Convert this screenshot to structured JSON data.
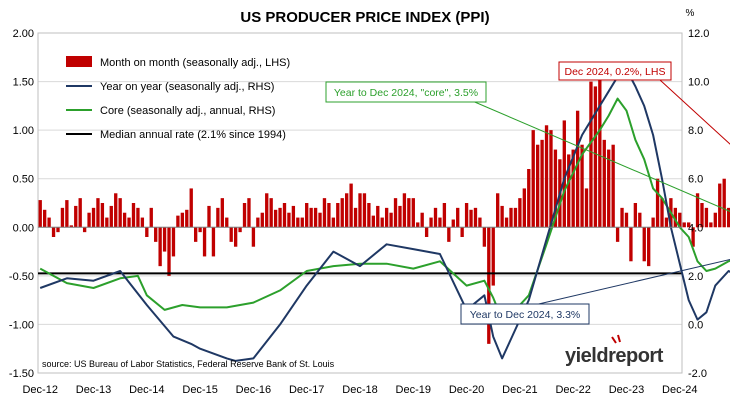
{
  "chart_data": {
    "type": "bar+line",
    "title": "US PRODUCER PRICE INDEX (PPI)",
    "left_unit": "",
    "right_unit": "%",
    "left_axis": {
      "min": -1.5,
      "max": 2.0,
      "ticks": [
        "2.00",
        "1.50",
        "1.00",
        "0.50",
        "0.00",
        "-0.50",
        "-1.00",
        "-1.50"
      ]
    },
    "right_axis": {
      "min": -2.0,
      "max": 12.0,
      "ticks": [
        "12.0",
        "10.0",
        "8.0",
        "6.0",
        "4.0",
        "2.0",
        "0.0",
        "-2.0"
      ]
    },
    "x_labels": [
      "Dec-12",
      "Dec-13",
      "Dec-14",
      "Dec-15",
      "Dec-16",
      "Dec-17",
      "Dec-18",
      "Dec-19",
      "Dec-20",
      "Dec-21",
      "Dec-22",
      "Dec-23",
      "Dec-24"
    ],
    "x_start": "2012-12",
    "grid": true,
    "legend": {
      "placement": "top-left",
      "items": [
        {
          "label": "Month on month (seasonally adj., LHS)",
          "kind": "bar",
          "color": "#c00000"
        },
        {
          "label": "Year on year (seasonally adj., RHS)",
          "kind": "line",
          "color": "#1f3864"
        },
        {
          "label": "Core (seasonally adj., annual, RHS)",
          "kind": "line",
          "color": "#2ca02c"
        },
        {
          "label": "Median annual rate (2.1% since 1994)",
          "kind": "line",
          "color": "#000000"
        }
      ]
    },
    "series": [
      {
        "name": "Month on month (seasonally adj., LHS)",
        "axis": "left",
        "color": "#c00000",
        "values": [
          0.28,
          0.18,
          0.1,
          -0.1,
          -0.05,
          0.2,
          0.28,
          0.02,
          0.22,
          0.3,
          -0.05,
          0.15,
          0.2,
          0.3,
          0.25,
          0.1,
          0.22,
          0.35,
          0.3,
          0.15,
          0.1,
          0.25,
          0.2,
          0.1,
          -0.1,
          0.2,
          -0.15,
          -0.4,
          -0.25,
          -0.5,
          -0.3,
          0.12,
          0.15,
          0.18,
          0.4,
          -0.15,
          -0.05,
          -0.3,
          0.22,
          -0.3,
          0.2,
          0.3,
          0.1,
          -0.15,
          -0.2,
          -0.05,
          0.25,
          0.3,
          -0.2,
          0.1,
          0.15,
          0.35,
          0.3,
          0.18,
          0.2,
          0.25,
          0.15,
          0.22,
          0.1,
          0.1,
          0.25,
          0.2,
          0.2,
          0.15,
          0.3,
          0.25,
          0.1,
          0.25,
          0.3,
          0.35,
          0.45,
          0.2,
          0.35,
          0.35,
          0.25,
          0.12,
          0.22,
          0.1,
          0.2,
          0.15,
          0.3,
          0.22,
          0.35,
          0.3,
          0.3,
          0.05,
          0.15,
          -0.1,
          0.1,
          0.2,
          0.1,
          0.25,
          -0.15,
          0.08,
          0.2,
          -0.1,
          0.25,
          0.18,
          0.2,
          0.1,
          -0.2,
          -1.2,
          -0.6,
          0.35,
          0.22,
          0.1,
          0.2,
          0.2,
          0.3,
          0.4,
          0.6,
          1.0,
          0.85,
          0.9,
          1.05,
          1.0,
          0.8,
          0.7,
          1.1,
          0.75,
          0.8,
          1.2,
          0.85,
          0.4,
          1.5,
          1.45,
          1.65,
          0.9,
          0.8,
          0.85,
          -0.15,
          0.2,
          0.15,
          -0.35,
          0.25,
          0.15,
          -0.35,
          -0.4,
          0.1,
          0.5,
          0.3,
          0.1,
          0.3,
          0.2,
          0.15,
          0.05,
          0.05,
          -0.2,
          0.35,
          0.25,
          0.2,
          0.05,
          0.15,
          0.45,
          0.5,
          0.2,
          0.2,
          0.25,
          0.3,
          0.4,
          0.18,
          0.38,
          0.22,
          0.22,
          0.2
        ]
      },
      {
        "name": "Year on year (seasonally adj., RHS)",
        "axis": "right",
        "color": "#1f3864",
        "points": [
          [
            0,
            1.5
          ],
          [
            6,
            1.9
          ],
          [
            12,
            1.8
          ],
          [
            18,
            2.2
          ],
          [
            24,
            0.8
          ],
          [
            30,
            -0.5
          ],
          [
            34,
            -0.8
          ],
          [
            36,
            -1.0
          ],
          [
            42,
            -1.4
          ],
          [
            44,
            -1.5
          ],
          [
            48,
            -1.4
          ],
          [
            54,
            0.0
          ],
          [
            60,
            1.6
          ],
          [
            66,
            3.0
          ],
          [
            72,
            2.4
          ],
          [
            78,
            3.3
          ],
          [
            84,
            3.1
          ],
          [
            90,
            2.9
          ],
          [
            96,
            0.6
          ],
          [
            100,
            1.2
          ],
          [
            102,
            -0.5
          ],
          [
            104,
            -1.4
          ],
          [
            106,
            -0.6
          ],
          [
            110,
            1.0
          ],
          [
            114,
            3.5
          ],
          [
            118,
            6.0
          ],
          [
            122,
            7.8
          ],
          [
            126,
            9.0
          ],
          [
            128,
            9.6
          ],
          [
            130,
            10.2
          ],
          [
            132,
            10.5
          ],
          [
            134,
            9.8
          ],
          [
            136,
            9.0
          ],
          [
            138,
            7.8
          ],
          [
            140,
            6.0
          ],
          [
            142,
            4.0
          ],
          [
            144,
            2.5
          ],
          [
            146,
            1.0
          ],
          [
            148,
            0.2
          ],
          [
            150,
            0.5
          ],
          [
            152,
            1.6
          ],
          [
            155,
            2.2
          ],
          [
            158,
            1.9
          ],
          [
            162,
            2.4
          ],
          [
            164,
            2.0
          ],
          [
            166,
            2.6
          ],
          [
            168,
            3.0
          ],
          [
            170,
            3.3
          ]
        ]
      },
      {
        "name": "Core (seasonally adj., annual, RHS)",
        "axis": "right",
        "color": "#2ca02c",
        "points": [
          [
            0,
            2.3
          ],
          [
            6,
            1.7
          ],
          [
            12,
            1.5
          ],
          [
            18,
            1.9
          ],
          [
            22,
            2.0
          ],
          [
            24,
            1.2
          ],
          [
            28,
            0.6
          ],
          [
            32,
            0.8
          ],
          [
            36,
            0.7
          ],
          [
            42,
            0.7
          ],
          [
            48,
            0.9
          ],
          [
            54,
            1.4
          ],
          [
            60,
            2.2
          ],
          [
            66,
            2.4
          ],
          [
            72,
            2.5
          ],
          [
            78,
            2.5
          ],
          [
            84,
            2.3
          ],
          [
            90,
            2.6
          ],
          [
            96,
            1.6
          ],
          [
            100,
            1.8
          ],
          [
            102,
            1.1
          ],
          [
            104,
            0.2
          ],
          [
            106,
            0.4
          ],
          [
            110,
            1.2
          ],
          [
            114,
            3.3
          ],
          [
            118,
            5.5
          ],
          [
            122,
            7.0
          ],
          [
            126,
            8.0
          ],
          [
            128,
            8.6
          ],
          [
            130,
            9.3
          ],
          [
            132,
            8.8
          ],
          [
            134,
            7.6
          ],
          [
            136,
            6.8
          ],
          [
            138,
            5.6
          ],
          [
            140,
            5.2
          ],
          [
            142,
            4.6
          ],
          [
            144,
            4.0
          ],
          [
            146,
            3.6
          ],
          [
            148,
            2.6
          ],
          [
            150,
            2.2
          ],
          [
            152,
            2.3
          ],
          [
            155,
            2.6
          ],
          [
            158,
            2.8
          ],
          [
            162,
            2.9
          ],
          [
            164,
            3.1
          ],
          [
            166,
            3.3
          ],
          [
            168,
            3.4
          ],
          [
            170,
            3.5
          ]
        ]
      },
      {
        "name": "Median annual rate (2.1% since 1994)",
        "axis": "right",
        "color": "#000000",
        "value": 2.1
      }
    ],
    "annotations": [
      {
        "text": "Year to Dec 2024, \"core\", 3.5%",
        "color": "#2ca02c"
      },
      {
        "text": "Dec 2024, 0.2%, LHS",
        "color": "#c00000"
      },
      {
        "text": "Year to Dec 2024, 3.3%",
        "color": "#1f3864"
      }
    ],
    "source": "source: US Bureau of Labor Statistics, Federal Reserve Bank of St. Louis",
    "logo": "yieldreport"
  }
}
